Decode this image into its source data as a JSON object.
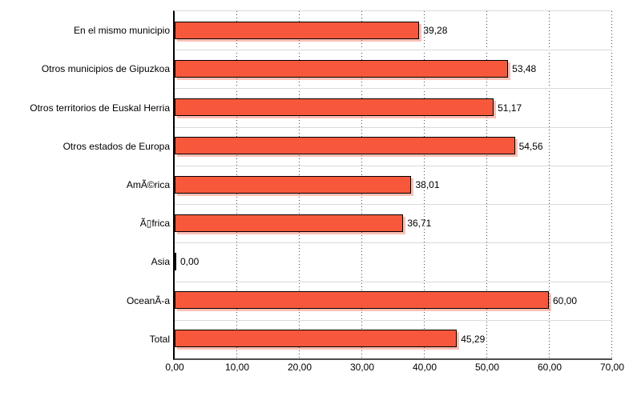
{
  "chart_data": {
    "type": "bar",
    "orientation": "horizontal",
    "categories": [
      "En el mismo municipio",
      "Otros municipios de Gipuzkoa",
      "Otros territorios de Euskal Herria",
      "Otros estados de Europa",
      "AmÃ©rica",
      "Ã▯frica",
      "Asia",
      "OceanÃ-a",
      "Total"
    ],
    "values": [
      39.28,
      53.48,
      51.17,
      54.56,
      38.01,
      36.71,
      0,
      60,
      45.29
    ],
    "value_labels": [
      "39,28",
      "53,48",
      "51,17",
      "54,56",
      "38,01",
      "36,71",
      "0,00",
      "60,00",
      "45,29"
    ],
    "x_ticks": [
      "0,00",
      "10,00",
      "20,00",
      "30,00",
      "40,00",
      "50,00",
      "60,00",
      "70,00"
    ],
    "x_tick_values": [
      0,
      10,
      20,
      30,
      40,
      50,
      60,
      70
    ],
    "xlim": [
      0,
      70
    ],
    "grid": "vertical dotted gridlines every 10 units; light gray horizontal row separators",
    "legend": "none",
    "colors": {
      "bar_fill": "#F7583C",
      "bar_border": "#000000",
      "bar_shadow": "rgba(247,88,60,0.38)",
      "y_axis_line": "#000000",
      "x_axis_line": "#4d4d4d",
      "row_separator": "#dadada",
      "gridline_dots": "#4a4a4a",
      "text": "#000000",
      "background": "#ffffff"
    }
  }
}
